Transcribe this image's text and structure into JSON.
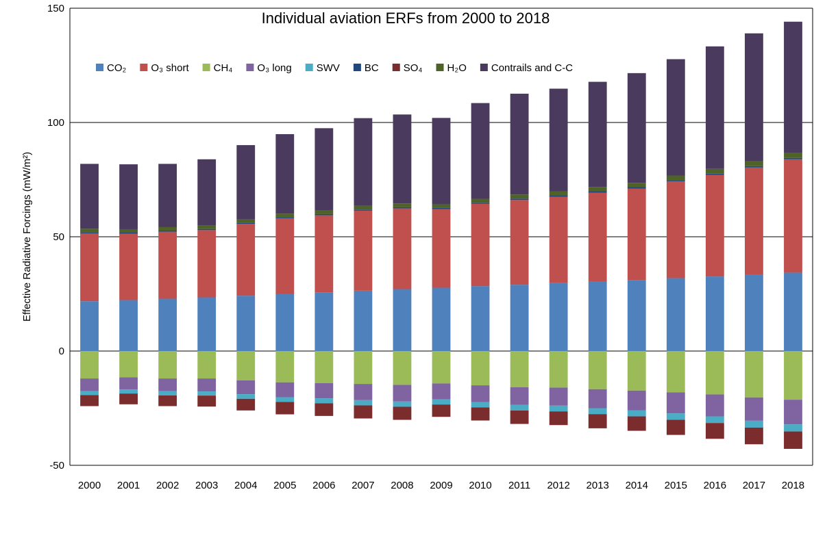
{
  "chart_data": {
    "type": "bar",
    "stacked": true,
    "title": "Individual aviation ERFs from 2000 to 2018",
    "ylabel": "Effective Radiative Forcings (mW/m²)",
    "xlabel": "",
    "ylim": [
      -50,
      150
    ],
    "yticks": [
      -50,
      0,
      50,
      100,
      150
    ],
    "grid": "horizontal",
    "legend_position": "top",
    "categories": [
      "2000",
      "2001",
      "2002",
      "2003",
      "2004",
      "2005",
      "2006",
      "2007",
      "2008",
      "2009",
      "2010",
      "2011",
      "2012",
      "2013",
      "2014",
      "2015",
      "2016",
      "2017",
      "2018"
    ],
    "series": [
      {
        "name": "CO₂",
        "color": "#4f81bd",
        "values": [
          21.8,
          22.3,
          22.9,
          23.5,
          24.2,
          25.0,
          25.7,
          26.4,
          27.1,
          27.7,
          28.4,
          29.0,
          29.7,
          30.4,
          31.1,
          31.9,
          32.6,
          33.4,
          34.3
        ]
      },
      {
        "name": "O₃ short",
        "color": "#c0504d",
        "values": [
          29.7,
          29.0,
          29.3,
          29.4,
          31.4,
          33.0,
          33.7,
          35.0,
          35.3,
          34.4,
          36.0,
          37.1,
          37.8,
          38.9,
          40.0,
          42.3,
          44.4,
          46.9,
          49.6
        ]
      },
      {
        "name": "CH₄",
        "color": "#9bbb59",
        "values": [
          -12.0,
          -11.5,
          -12.0,
          -12.0,
          -12.8,
          -13.7,
          -14.0,
          -14.4,
          -14.8,
          -14.2,
          -15.0,
          -15.8,
          -16.0,
          -16.7,
          -17.3,
          -18.1,
          -19.0,
          -20.3,
          -21.3
        ]
      },
      {
        "name": "O₃ long",
        "color": "#8064a2",
        "values": [
          -5.5,
          -5.3,
          -5.6,
          -5.7,
          -6.1,
          -6.5,
          -6.7,
          -7.1,
          -7.3,
          -7.0,
          -7.4,
          -7.8,
          -7.9,
          -8.3,
          -8.6,
          -9.2,
          -9.6,
          -10.2,
          -10.8
        ]
      },
      {
        "name": "SWV",
        "color": "#4bacc6",
        "values": [
          -1.8,
          -1.8,
          -1.8,
          -1.8,
          -2.0,
          -2.1,
          -2.2,
          -2.3,
          -2.3,
          -2.2,
          -2.3,
          -2.4,
          -2.5,
          -2.6,
          -2.7,
          -2.8,
          -2.9,
          -3.0,
          -3.1
        ]
      },
      {
        "name": "BC",
        "color": "#1f497d",
        "values": [
          0.5,
          0.5,
          0.5,
          0.5,
          0.5,
          0.5,
          0.5,
          0.5,
          0.5,
          0.5,
          0.5,
          0.6,
          0.6,
          0.6,
          0.6,
          0.6,
          0.6,
          0.6,
          0.6
        ]
      },
      {
        "name": "SO₄",
        "color": "#7b2c2c",
        "values": [
          -4.8,
          -4.7,
          -4.7,
          -4.8,
          -5.1,
          -5.4,
          -5.5,
          -5.7,
          -5.7,
          -5.4,
          -5.7,
          -5.9,
          -6.0,
          -6.2,
          -6.3,
          -6.6,
          -6.9,
          -7.3,
          -7.6
        ]
      },
      {
        "name": "H₂O",
        "color": "#4f6228",
        "values": [
          1.5,
          1.5,
          1.5,
          1.5,
          1.5,
          1.6,
          1.6,
          1.7,
          1.7,
          1.6,
          1.7,
          1.8,
          1.8,
          1.9,
          1.9,
          2.0,
          2.1,
          2.2,
          2.2
        ]
      },
      {
        "name": "Contrails and C-C",
        "color": "#4a3a5e",
        "values": [
          28.4,
          28.4,
          27.7,
          29.0,
          32.5,
          34.8,
          36.0,
          38.3,
          38.9,
          37.8,
          41.9,
          44.1,
          44.9,
          46.0,
          48.0,
          50.9,
          53.6,
          55.9,
          57.4
        ]
      }
    ]
  }
}
